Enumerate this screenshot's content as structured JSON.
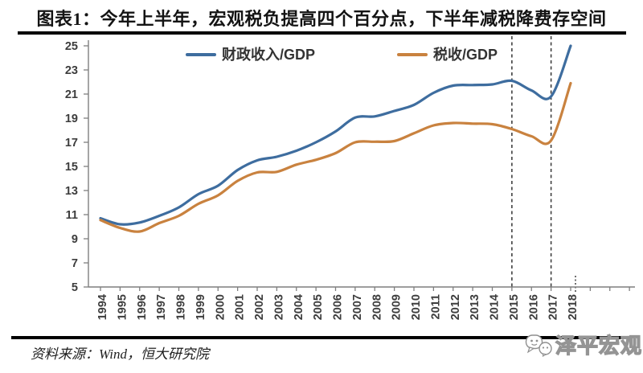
{
  "header": {
    "title": "图表1：今年上半年，宏观税负提高四个百分点，下半年减税降费存空间"
  },
  "footer": {
    "source_note": "资料来源：Wind，恒大研究院",
    "watermark_text": "泽平宏观",
    "watermark_icon": "chat-bubbles-face-icon"
  },
  "chart_data": {
    "type": "line",
    "x": [
      1994,
      1995,
      1996,
      1997,
      1998,
      1999,
      2000,
      2001,
      2002,
      2003,
      2004,
      2005,
      2006,
      2007,
      2008,
      2009,
      2010,
      2011,
      2012,
      2013,
      2014,
      2015,
      2016,
      2017,
      2018
    ],
    "series": [
      {
        "key": "fiscal-revenue-gdp",
        "name": "财政收入/GDP",
        "color": "#3E6D9F",
        "values": [
          10.7,
          10.2,
          10.35,
          10.9,
          11.6,
          12.7,
          13.4,
          14.7,
          15.5,
          15.8,
          16.3,
          17.0,
          17.9,
          19.05,
          19.15,
          19.6,
          20.1,
          21.1,
          21.7,
          21.75,
          21.8,
          22.1,
          21.3,
          20.8,
          25.0
        ]
      },
      {
        "key": "tax-gdp",
        "name": "税收/GDP",
        "color": "#C9823F",
        "values": [
          10.55,
          9.9,
          9.6,
          10.3,
          10.9,
          11.9,
          12.6,
          13.8,
          14.5,
          14.55,
          15.15,
          15.55,
          16.1,
          17.0,
          17.05,
          17.1,
          17.75,
          18.4,
          18.6,
          18.55,
          18.5,
          18.1,
          17.5,
          17.15,
          21.9
        ]
      }
    ],
    "ylim": [
      5,
      25
    ],
    "yticks": [
      5,
      7,
      9,
      11,
      13,
      15,
      17,
      19,
      21,
      23,
      25
    ],
    "xtick_labels": [
      "1994",
      "1995",
      "1996",
      "1997",
      "1998",
      "1999",
      "2000",
      "2001",
      "2002",
      "2003",
      "2004",
      "2005",
      "2006",
      "2007",
      "2008",
      "2009",
      "2010",
      "2011",
      "2012",
      "2013",
      "2014",
      "2015",
      "2016",
      "2017",
      "2018"
    ],
    "dashed_vlines_x": [
      2015,
      2017
    ],
    "dotted_tick_x": 2018,
    "grid": false,
    "legend_position": "top-inside",
    "axis_color": "#7f7f7f",
    "tick_label_color": "#3d3d3d",
    "dashed_line_color": "#404040"
  }
}
